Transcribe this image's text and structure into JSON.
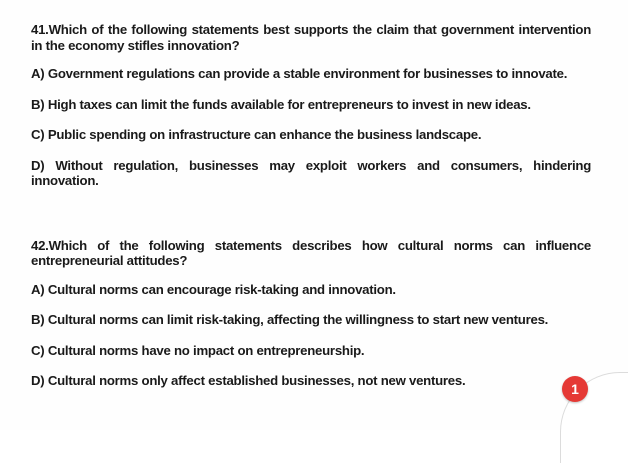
{
  "q41": {
    "question": "41.Which of the following statements best supports the claim that government intervention in the economy stifles innovation?",
    "options": [
      "A) Government regulations can provide a stable environment for businesses to innovate.",
      "B) High taxes can limit the funds available for entrepreneurs to invest in new ideas.",
      "C) Public spending on infrastructure can enhance the business landscape.",
      "D) Without regulation, businesses may exploit workers and consumers, hindering innovation."
    ]
  },
  "q42": {
    "question": "42.Which of the following statements describes how cultural norms can influence entrepreneurial attitudes?",
    "options": [
      "A) Cultural norms can encourage risk-taking and innovation.",
      "B) Cultural norms can limit risk-taking, affecting the willingness to start new ventures.",
      "C) Cultural norms have no impact on entrepreneurship.",
      "D) Cultural norms only affect established businesses, not new ventures."
    ]
  },
  "badge": {
    "count": "1",
    "color": "#e53935"
  }
}
